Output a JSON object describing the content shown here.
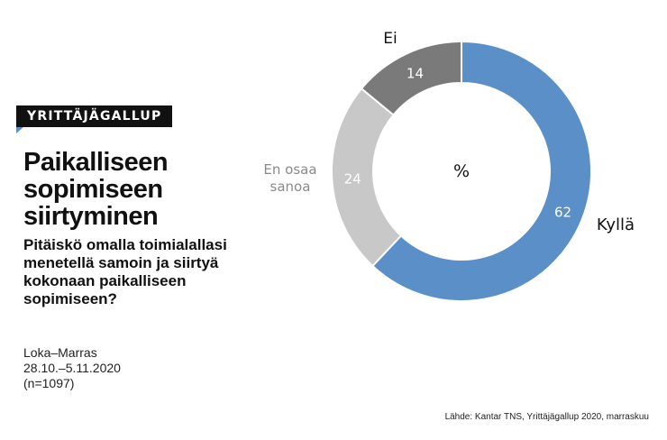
{
  "badge": "YRITTÄJÄGALLUP",
  "title": "Paikalliseen sopimiseen siirtyminen",
  "question": "Pitäiskö omalla toimialallasi menetellä samoin ja siirtyä kokonaan paikalliseen sopimiseen?",
  "meta": {
    "period": "Loka–Marras",
    "dates": "28.10.–5.11.2020",
    "n": "(n=1097)"
  },
  "source": "Lähde: Kantar TNS, Yrittäjägallup 2020, marraskuu",
  "chart_data": {
    "type": "pie",
    "variant": "donut",
    "center_label": "%",
    "slices": [
      {
        "label": "Kyllä",
        "value": 62,
        "color": "#5b8fc8"
      },
      {
        "label": "En osaa sanoa",
        "value": 24,
        "color": "#c8c8c8"
      },
      {
        "label": "Ei",
        "value": 14,
        "color": "#7a7a7a"
      }
    ]
  }
}
